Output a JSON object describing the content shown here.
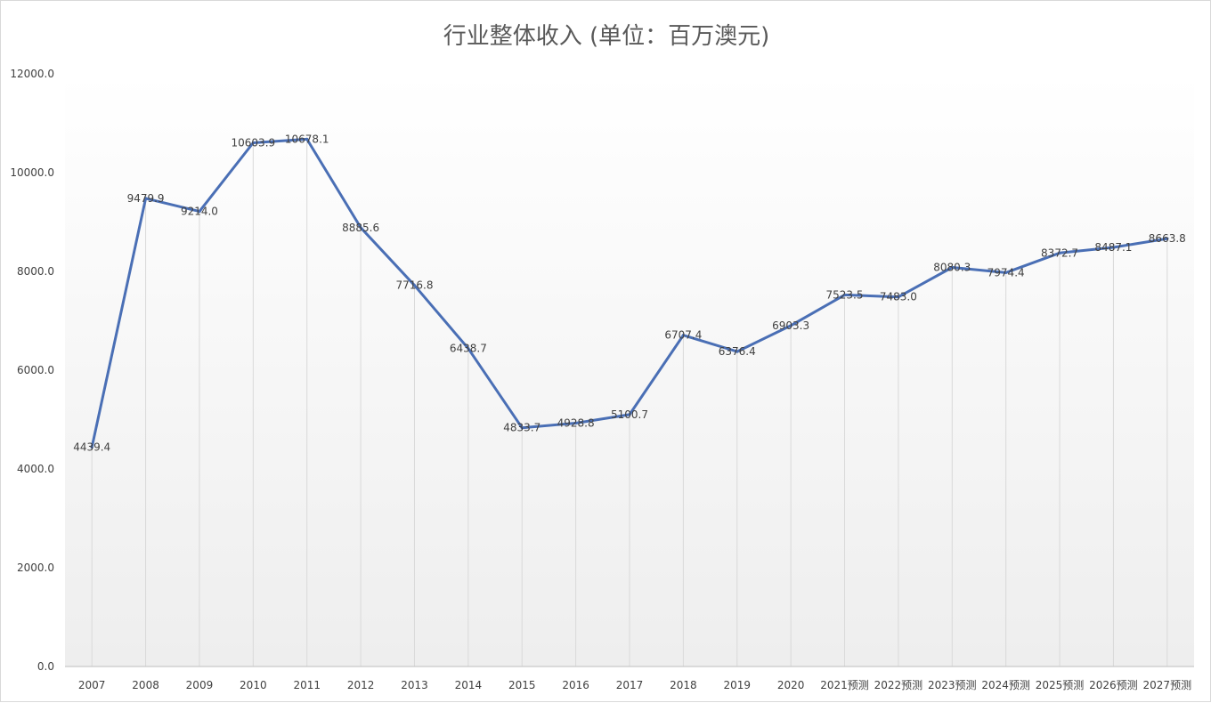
{
  "chart_data": {
    "type": "line",
    "title": "行业整体收入 (单位：百万澳元)",
    "xlabel": "",
    "ylabel": "",
    "ylim": [
      0,
      12000
    ],
    "yticks": [
      "0.0",
      "2000.0",
      "4000.0",
      "6000.0",
      "8000.0",
      "10000.0",
      "12000.0"
    ],
    "ytick_values": [
      0,
      2000,
      4000,
      6000,
      8000,
      10000,
      12000
    ],
    "grid": true,
    "legend": "none",
    "categories": [
      "2007",
      "2008",
      "2009",
      "2010",
      "2011",
      "2012",
      "2013",
      "2014",
      "2015",
      "2016",
      "2017",
      "2018",
      "2019",
      "2020",
      "2021预测",
      "2022预测",
      "2023预测",
      "2024预测",
      "2025预测",
      "2026预测",
      "2027预测"
    ],
    "series": [
      {
        "values": [
          4439.4,
          9479.9,
          9214.0,
          10603.9,
          10678.1,
          8885.6,
          7716.8,
          6438.7,
          4833.7,
          4928.8,
          5100.7,
          6707.4,
          6376.4,
          6903.3,
          7523.5,
          7483.0,
          8080.3,
          7974.4,
          8372.7,
          8487.1,
          8663.8
        ],
        "labels": [
          "4439.4",
          "9479.9",
          "9214.0",
          "10603.9",
          "10678.1",
          "8885.6",
          "7716.8",
          "6438.7",
          "4833.7",
          "4928.8",
          "5100.7",
          "6707.4",
          "6376.4",
          "6903.3",
          "7523.5",
          "7483.0",
          "8080.3",
          "7974.4",
          "8372.7",
          "8487.1",
          "8663.8"
        ],
        "color": "#4a6fb5"
      }
    ]
  }
}
